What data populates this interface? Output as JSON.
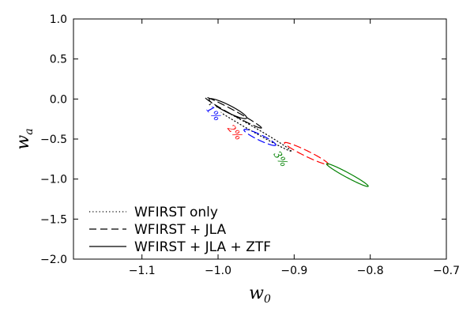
{
  "chart_data": {
    "type": "line",
    "title": "",
    "xlabel": "w",
    "xlabel_sub": "0",
    "ylabel": "w",
    "ylabel_sub": "a",
    "xlim": [
      -1.19,
      -0.7
    ],
    "ylim": [
      -2.0,
      1.0
    ],
    "xticks": [
      -1.1,
      -1.0,
      -0.9,
      -0.8,
      -0.7
    ],
    "xtick_labels": [
      "−1.1",
      "−1.0",
      "−0.9",
      "−0.8",
      "−0.7"
    ],
    "yticks": [
      1.0,
      0.5,
      0.0,
      -0.5,
      -1.0,
      -1.5,
      -2.0
    ],
    "ytick_labels": [
      "1.0",
      "0.5",
      "0.0",
      "−0.5",
      "−1.0",
      "−1.5",
      "−2.0"
    ],
    "grid": false,
    "legend_position": "bottom-left",
    "legend": [
      {
        "label": "WFIRST only",
        "dash": "dotted"
      },
      {
        "label": "WFIRST + JLA",
        "dash": "dashed"
      },
      {
        "label": "WFIRST + JLA + ZTF",
        "dash": "solid"
      }
    ],
    "series": [
      {
        "name": "WFIRST only",
        "dash": "dotted",
        "color": "#000000",
        "cx": -0.958,
        "cy": -0.355,
        "a": 0.3,
        "b": 0.0058,
        "theta": -79.7,
        "label": "",
        "label_x": 0,
        "label_y": 0,
        "label_rot": 0
      },
      {
        "name": "WFIRST + JLA",
        "dash": "dashed",
        "color": "#000000",
        "cx": -0.98,
        "cy": -0.17,
        "a": 0.197,
        "b": 0.0062,
        "theta": -79.3,
        "label": "",
        "label_x": 0,
        "label_y": 0,
        "label_rot": 0
      },
      {
        "name": "WFIRST + JLA + ZTF",
        "dash": "solid",
        "color": "#000000",
        "cx": -0.987,
        "cy": -0.12,
        "a": 0.127,
        "b": 0.0099,
        "theta": -79.7,
        "label": "",
        "label_x": 0,
        "label_y": 0,
        "label_rot": 0
      },
      {
        "name": "",
        "dash": "dashed",
        "color": "#0000ff",
        "cx": -0.945,
        "cy": -0.48,
        "a": 0.103,
        "b": 0.0079,
        "theta": -79.1,
        "label": "1%",
        "label_x": -1.006,
        "label_y": -0.18,
        "label_rot": 50
      },
      {
        "name": "",
        "dash": "dashed",
        "color": "#ff0000",
        "cx": -0.884,
        "cy": -0.68,
        "a": 0.14,
        "b": 0.0079,
        "theta": -78.6,
        "label": "2%",
        "label_x": -0.978,
        "label_y": -0.42,
        "label_rot": 50
      },
      {
        "name": "",
        "dash": "solid",
        "color": "#008000",
        "cx": -0.83,
        "cy": -0.95,
        "a": 0.145,
        "b": 0.0063,
        "theta": -79.4,
        "label": "3%",
        "label_x": -0.918,
        "label_y": -0.75,
        "label_rot": 55
      }
    ]
  }
}
